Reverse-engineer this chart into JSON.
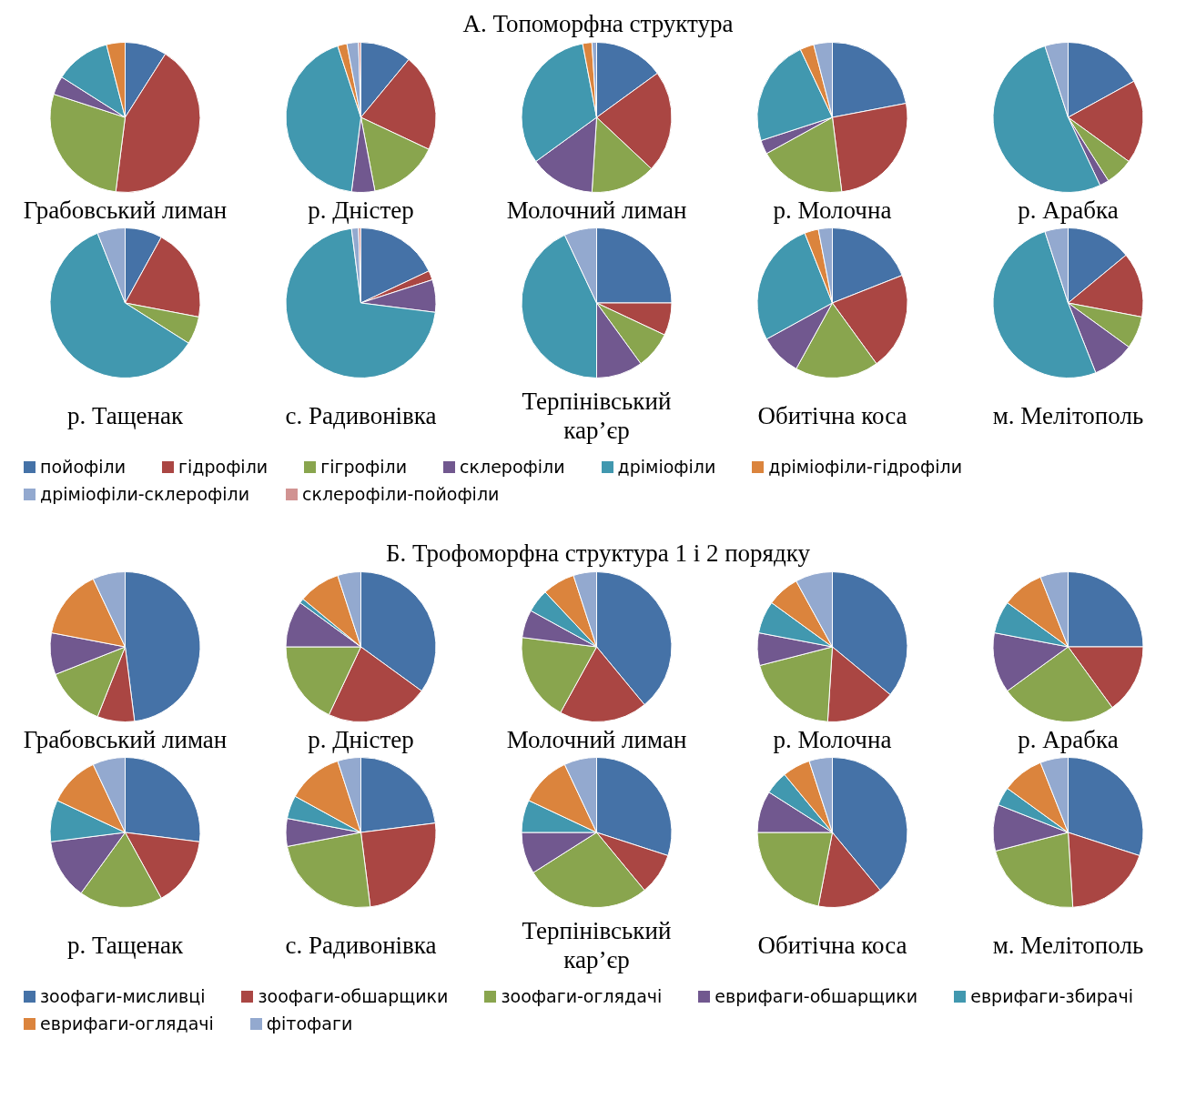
{
  "chart_data": [
    {
      "type": "pie",
      "title": "А. Топоморфна структура",
      "legend": "bottom",
      "categories": [
        "пойофіли",
        "гідрофіли",
        "гігрофіли",
        "склерофіли",
        "дріміофіли",
        "дріміофіли-гідрофіли",
        "дріміофіли-склерофіли",
        "склерофіли-пойофіли"
      ],
      "colors": [
        "#4572a7",
        "#aa4643",
        "#89a54e",
        "#71588f",
        "#4198af",
        "#db843d",
        "#93a9cf",
        "#d19392"
      ],
      "series": [
        {
          "name": "Грабовський лиман",
          "values": [
            9,
            43,
            28,
            4,
            12,
            4,
            0,
            0
          ]
        },
        {
          "name": "р. Дністер",
          "values": [
            11,
            21,
            15,
            5,
            43,
            2,
            2.5,
            0.5
          ]
        },
        {
          "name": "Молочний лиман",
          "values": [
            15,
            22,
            14,
            14,
            32,
            2,
            1,
            0
          ]
        },
        {
          "name": "р. Молочна",
          "values": [
            22,
            26,
            19,
            3,
            23,
            3,
            4,
            0
          ]
        },
        {
          "name": "р. Арабка",
          "values": [
            17,
            18,
            6,
            2,
            52,
            0,
            5,
            0
          ]
        },
        {
          "name": "р. Тащенак",
          "values": [
            8,
            20,
            6,
            0,
            60,
            0,
            6,
            0
          ]
        },
        {
          "name": "с. Радивонівка",
          "values": [
            18,
            2,
            0,
            7,
            71,
            0,
            1.5,
            0.5
          ]
        },
        {
          "name": "Терпінівський кар’єр",
          "values": [
            25,
            7,
            8,
            10,
            43,
            0,
            7,
            0
          ]
        },
        {
          "name": "Обитічна коса",
          "values": [
            19,
            21,
            18,
            9,
            27,
            3,
            3,
            0
          ]
        },
        {
          "name": "м. Мелітополь",
          "values": [
            14,
            14,
            7,
            9,
            51,
            0,
            5,
            0
          ]
        }
      ]
    },
    {
      "type": "pie",
      "title": "Б. Трофоморфна структура 1 і 2 порядку",
      "legend": "bottom",
      "categories": [
        "зоофаги-мисливці",
        "зоофаги-обшарщики",
        "зоофаги-оглядачі",
        "еврифаги-обшарщики",
        "еврифаги-збирачі",
        "еврифаги-оглядачі",
        "фітофаги"
      ],
      "colors": [
        "#4572a7",
        "#aa4643",
        "#89a54e",
        "#71588f",
        "#4198af",
        "#db843d",
        "#93a9cf"
      ],
      "series": [
        {
          "name": "Грабовський лиман",
          "values": [
            48,
            8,
            13,
            9,
            0,
            15,
            7
          ]
        },
        {
          "name": "р. Дністер",
          "values": [
            35,
            22,
            18,
            10,
            1,
            9,
            5
          ]
        },
        {
          "name": "Молочний лиман",
          "values": [
            39,
            19,
            19,
            6,
            5,
            7,
            5
          ]
        },
        {
          "name": "р. Молочна",
          "values": [
            36,
            15,
            20,
            7,
            7,
            7,
            8
          ]
        },
        {
          "name": "р. Арабка",
          "values": [
            25,
            15,
            25,
            13,
            7,
            9,
            6
          ]
        },
        {
          "name": "р. Тащенак",
          "values": [
            27,
            15,
            18,
            13,
            9,
            11,
            7
          ]
        },
        {
          "name": "с. Радивонівка",
          "values": [
            23,
            25,
            24,
            6,
            5,
            12,
            5
          ]
        },
        {
          "name": "Терпінівський кар’єр",
          "values": [
            30,
            9,
            27,
            9,
            7,
            11,
            7
          ]
        },
        {
          "name": "Обитічна коса",
          "values": [
            39,
            14,
            22,
            9,
            5,
            6,
            5
          ]
        },
        {
          "name": "м. Мелітополь",
          "values": [
            30,
            19,
            22,
            10,
            4,
            9,
            6
          ]
        }
      ]
    }
  ]
}
